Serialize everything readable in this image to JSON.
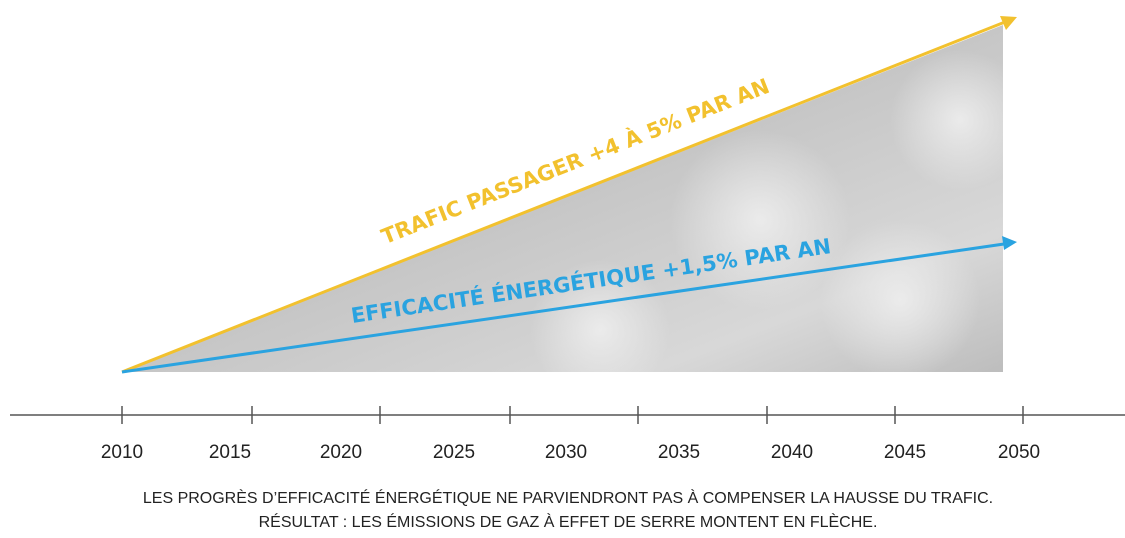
{
  "lines": {
    "traffic": "TRAFIC PASSAGER +4 À 5% PAR AN",
    "efficiency": "EFFICACITÉ ÉNERGÉTIQUE +1,5% PAR AN"
  },
  "axis": {
    "labels": [
      "2010",
      "2015",
      "2020",
      "2025",
      "2030",
      "2035",
      "2040",
      "2045",
      "2050"
    ]
  },
  "caption": [
    "LES PROGRÈS D’EFFICACITÉ ÉNERGÉTIQUE NE PARVIENDRONT PAS À COMPENSER LA HAUSSE DU TRAFIC.",
    "RÉSULTAT : LES ÉMISSIONS DE GAZ À EFFET DE SERRE MONTENT EN FLÈCHE."
  ]
}
